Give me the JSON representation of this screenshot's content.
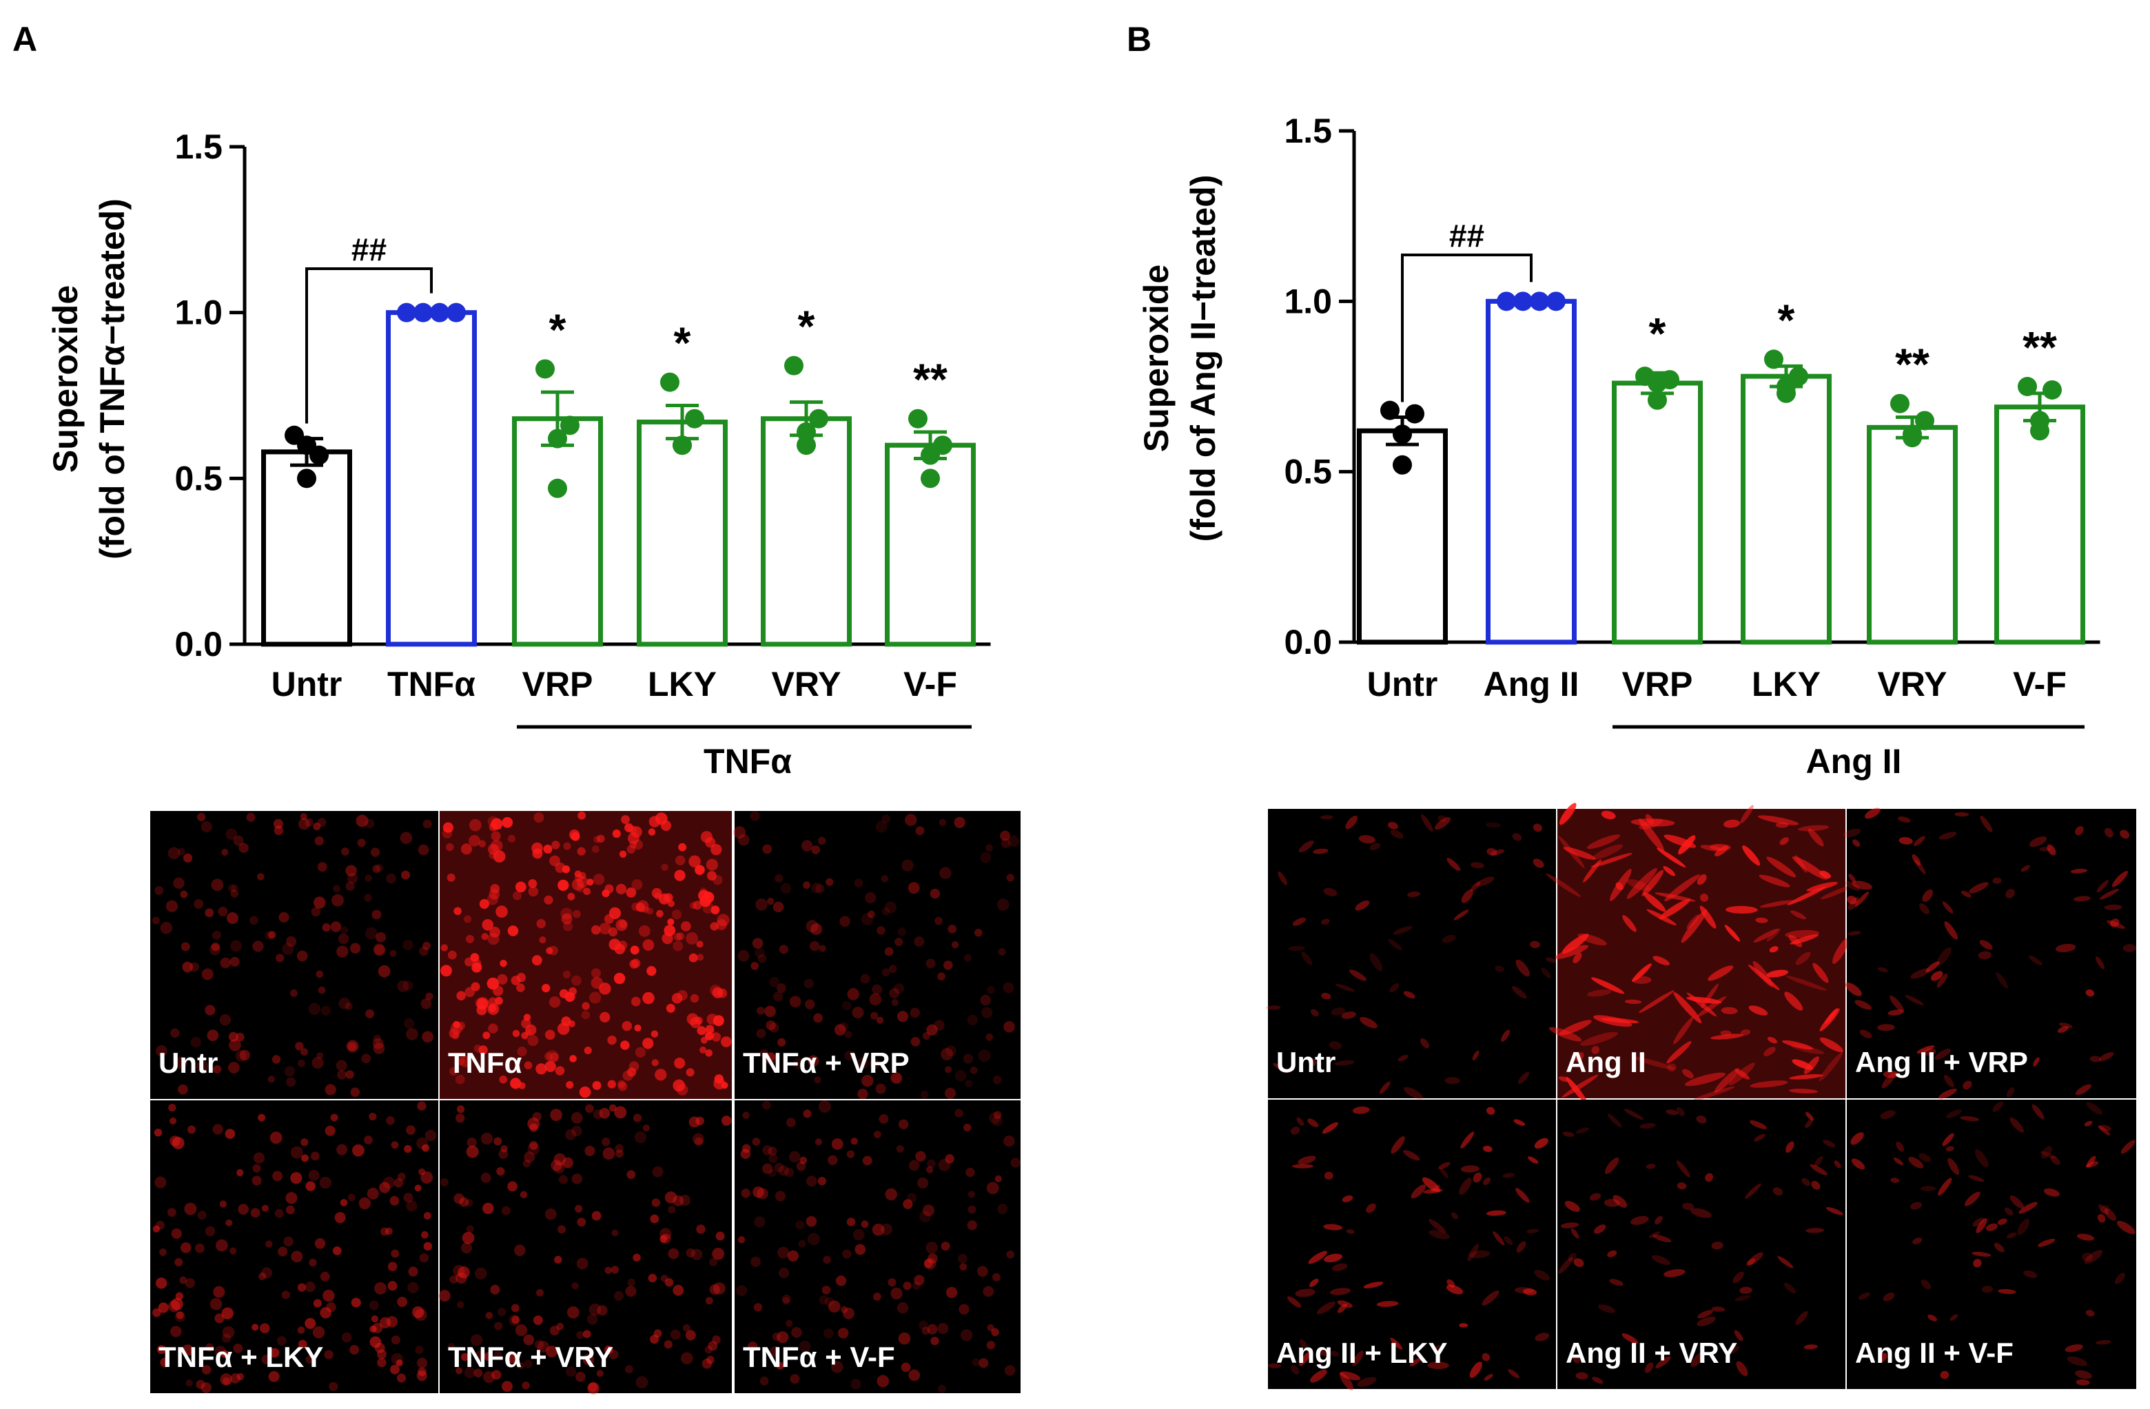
{
  "colors": {
    "black": "#000000",
    "blue": "#1f2fd6",
    "green": "#1e8c1e",
    "fluor": "#ff1a1a",
    "panel_bg": "#000000",
    "panel_text": "#ffffff"
  },
  "panels": [
    {
      "label": "A",
      "treatment_group_label": "TNFα",
      "significance_bracket": {
        "from": "Untr",
        "to": "TNFα",
        "text": "##"
      },
      "micrographs": [
        {
          "label": "Untr",
          "intensity": 0.18,
          "cells": "round"
        },
        {
          "label": "TNFα",
          "intensity": 0.95,
          "cells": "round"
        },
        {
          "label": "TNFα + VRP",
          "intensity": 0.12,
          "cells": "round"
        },
        {
          "label": "TNFα + LKY",
          "intensity": 0.35,
          "cells": "round"
        },
        {
          "label": "TNFα + VRY",
          "intensity": 0.3,
          "cells": "round"
        },
        {
          "label": "TNFα + V-F",
          "intensity": 0.18,
          "cells": "round"
        }
      ]
    },
    {
      "label": "B",
      "treatment_group_label": "Ang II",
      "significance_bracket": {
        "from": "Untr",
        "to": "Ang II",
        "text": "##"
      },
      "micrographs": [
        {
          "label": "Untr",
          "intensity": 0.2,
          "cells": "spindle"
        },
        {
          "label": "Ang II",
          "intensity": 0.9,
          "cells": "spindle"
        },
        {
          "label": "Ang II + VRP",
          "intensity": 0.35,
          "cells": "spindle"
        },
        {
          "label": "Ang II + LKY",
          "intensity": 0.4,
          "cells": "spindle"
        },
        {
          "label": "Ang II + VRY",
          "intensity": 0.3,
          "cells": "spindle"
        },
        {
          "label": "Ang II + V-F",
          "intensity": 0.3,
          "cells": "spindle"
        }
      ]
    }
  ],
  "chart_data": [
    {
      "type": "bar",
      "title": "",
      "ylabel": "Superoxide",
      "ylabel2": "(fold of TNFα−treated)",
      "ylim": [
        0,
        1.5
      ],
      "yticks": [
        0.0,
        0.5,
        1.0,
        1.5
      ],
      "ytick_labels": [
        "0.0",
        "0.5",
        "1.0",
        "1.5"
      ],
      "categories": [
        "Untr",
        "TNFα",
        "VRP",
        "LKY",
        "VRY",
        "V-F"
      ],
      "values": [
        0.58,
        1.0,
        0.68,
        0.67,
        0.68,
        0.6
      ],
      "sem": [
        0.04,
        0.0,
        0.08,
        0.05,
        0.05,
        0.04
      ],
      "points": [
        [
          0.63,
          0.57,
          0.6,
          0.5
        ],
        [
          1.0,
          1.0,
          1.0,
          1.0
        ],
        [
          0.83,
          0.66,
          0.62,
          0.47
        ],
        [
          0.79,
          0.68,
          0.6,
          0.6
        ],
        [
          0.84,
          0.68,
          0.64,
          0.6
        ],
        [
          0.68,
          0.6,
          0.57,
          0.5
        ]
      ],
      "significance": [
        "",
        "",
        "*",
        "*",
        "*",
        "**"
      ],
      "bar_colors": [
        "black",
        "blue",
        "green",
        "green",
        "green",
        "green"
      ]
    },
    {
      "type": "bar",
      "title": "",
      "ylabel": "Superoxide",
      "ylabel2": "(fold of Ang II−treated)",
      "ylim": [
        0,
        1.5
      ],
      "yticks": [
        0.0,
        0.5,
        1.0,
        1.5
      ],
      "ytick_labels": [
        "0.0",
        "0.5",
        "1.0",
        "1.5"
      ],
      "categories": [
        "Untr",
        "Ang II",
        "VRP",
        "LKY",
        "VRY",
        "V-F"
      ],
      "values": [
        0.62,
        1.0,
        0.76,
        0.78,
        0.63,
        0.69
      ],
      "sem": [
        0.04,
        0.0,
        0.03,
        0.03,
        0.03,
        0.04
      ],
      "points": [
        [
          0.68,
          0.67,
          0.61,
          0.52
        ],
        [
          1.0,
          1.0,
          1.0,
          1.0
        ],
        [
          0.78,
          0.77,
          0.76,
          0.71
        ],
        [
          0.83,
          0.78,
          0.75,
          0.73
        ],
        [
          0.7,
          0.65,
          0.61,
          0.6
        ],
        [
          0.75,
          0.74,
          0.65,
          0.62
        ]
      ],
      "significance": [
        "",
        "",
        "*",
        "*",
        "**",
        "**"
      ],
      "bar_colors": [
        "black",
        "blue",
        "green",
        "green",
        "green",
        "green"
      ]
    }
  ]
}
